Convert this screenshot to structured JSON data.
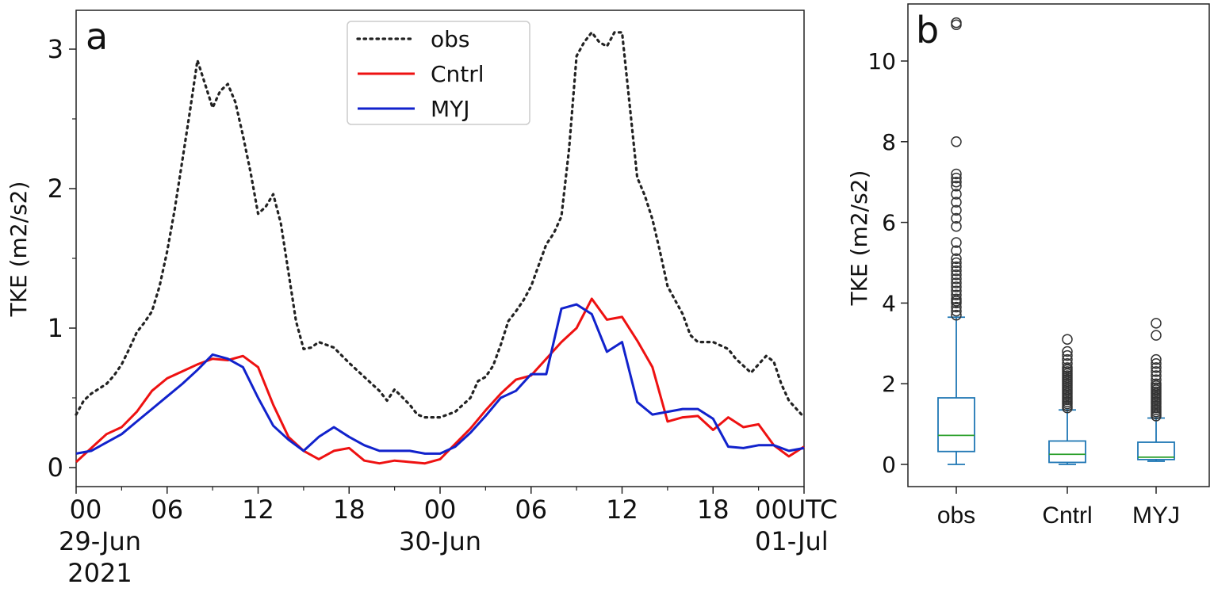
{
  "chart_data": [
    {
      "type": "line",
      "panel_label": "a",
      "ylabel": "TKE (m2/s2)",
      "ylim": [
        0,
        3.2
      ],
      "yticks": [
        0,
        1,
        2,
        3
      ],
      "xlim": [
        0,
        48
      ],
      "x_unit": "hours since 2021-06-29 00UTC",
      "xticks": [
        {
          "x": 0,
          "lines": [
            "00",
            "29-Jun",
            "2021"
          ]
        },
        {
          "x": 6,
          "lines": [
            "06"
          ]
        },
        {
          "x": 12,
          "lines": [
            "12"
          ]
        },
        {
          "x": 18,
          "lines": [
            "18"
          ]
        },
        {
          "x": 24,
          "lines": [
            "00",
            "30-Jun"
          ]
        },
        {
          "x": 30,
          "lines": [
            "06"
          ]
        },
        {
          "x": 36,
          "lines": [
            "12"
          ]
        },
        {
          "x": 42,
          "lines": [
            "18"
          ]
        },
        {
          "x": 48,
          "lines": [
            "00UTC",
            "01-Jul"
          ]
        }
      ],
      "legend_position": "top-center",
      "series": [
        {
          "name": "obs",
          "color": "#222222",
          "style": "dotted",
          "points": [
            [
              0,
              0.38
            ],
            [
              0.5,
              0.48
            ],
            [
              1,
              0.53
            ],
            [
              2,
              0.6
            ],
            [
              2.5,
              0.66
            ],
            [
              3,
              0.74
            ],
            [
              3.5,
              0.85
            ],
            [
              4,
              0.97
            ],
            [
              4.5,
              1.04
            ],
            [
              5,
              1.12
            ],
            [
              5.5,
              1.3
            ],
            [
              6,
              1.55
            ],
            [
              6.5,
              1.85
            ],
            [
              7,
              2.2
            ],
            [
              7.5,
              2.55
            ],
            [
              8,
              2.92
            ],
            [
              8.5,
              2.75
            ],
            [
              9,
              2.58
            ],
            [
              9.5,
              2.7
            ],
            [
              10,
              2.75
            ],
            [
              10.5,
              2.62
            ],
            [
              11,
              2.38
            ],
            [
              11.5,
              2.12
            ],
            [
              12,
              1.82
            ],
            [
              12.5,
              1.87
            ],
            [
              13,
              1.96
            ],
            [
              13.5,
              1.75
            ],
            [
              14,
              1.4
            ],
            [
              14.5,
              1.05
            ],
            [
              15,
              0.85
            ],
            [
              15.5,
              0.86
            ],
            [
              16,
              0.9
            ],
            [
              17,
              0.86
            ],
            [
              18,
              0.75
            ],
            [
              19,
              0.65
            ],
            [
              20,
              0.55
            ],
            [
              20.5,
              0.48
            ],
            [
              21,
              0.56
            ],
            [
              22,
              0.45
            ],
            [
              22.5,
              0.38
            ],
            [
              23,
              0.36
            ],
            [
              24,
              0.36
            ],
            [
              25,
              0.4
            ],
            [
              26,
              0.5
            ],
            [
              26.5,
              0.62
            ],
            [
              27,
              0.65
            ],
            [
              27.5,
              0.73
            ],
            [
              28,
              0.88
            ],
            [
              28.5,
              1.05
            ],
            [
              29,
              1.12
            ],
            [
              29.5,
              1.2
            ],
            [
              30,
              1.3
            ],
            [
              30.5,
              1.45
            ],
            [
              31,
              1.6
            ],
            [
              31.5,
              1.68
            ],
            [
              32,
              1.8
            ],
            [
              32.5,
              2.28
            ],
            [
              33,
              2.95
            ],
            [
              33.5,
              3.05
            ],
            [
              34,
              3.12
            ],
            [
              34.5,
              3.05
            ],
            [
              35,
              3.02
            ],
            [
              35.5,
              3.12
            ],
            [
              36,
              3.12
            ],
            [
              36.5,
              2.6
            ],
            [
              37,
              2.08
            ],
            [
              37.5,
              1.95
            ],
            [
              38,
              1.78
            ],
            [
              38.5,
              1.55
            ],
            [
              39,
              1.3
            ],
            [
              39.5,
              1.2
            ],
            [
              40,
              1.1
            ],
            [
              40.5,
              0.95
            ],
            [
              41,
              0.9
            ],
            [
              42,
              0.9
            ],
            [
              43,
              0.85
            ],
            [
              43.5,
              0.78
            ],
            [
              44,
              0.73
            ],
            [
              44.5,
              0.68
            ],
            [
              45,
              0.74
            ],
            [
              45.5,
              0.8
            ],
            [
              46,
              0.76
            ],
            [
              46.5,
              0.6
            ],
            [
              47,
              0.48
            ],
            [
              48,
              0.36
            ]
          ]
        },
        {
          "name": "Cntrl",
          "color": "#ee1111",
          "style": "solid",
          "points": [
            [
              0,
              0.04
            ],
            [
              1,
              0.14
            ],
            [
              2,
              0.24
            ],
            [
              3,
              0.29
            ],
            [
              4,
              0.4
            ],
            [
              5,
              0.55
            ],
            [
              6,
              0.64
            ],
            [
              7,
              0.69
            ],
            [
              8,
              0.74
            ],
            [
              9,
              0.78
            ],
            [
              10,
              0.77
            ],
            [
              11,
              0.8
            ],
            [
              12,
              0.72
            ],
            [
              13,
              0.45
            ],
            [
              14,
              0.22
            ],
            [
              15,
              0.12
            ],
            [
              16,
              0.06
            ],
            [
              17,
              0.12
            ],
            [
              18,
              0.14
            ],
            [
              19,
              0.05
            ],
            [
              20,
              0.03
            ],
            [
              21,
              0.05
            ],
            [
              22,
              0.04
            ],
            [
              23,
              0.03
            ],
            [
              24,
              0.06
            ],
            [
              25,
              0.17
            ],
            [
              26,
              0.28
            ],
            [
              27,
              0.41
            ],
            [
              28,
              0.53
            ],
            [
              29,
              0.63
            ],
            [
              30,
              0.66
            ],
            [
              31,
              0.78
            ],
            [
              32,
              0.9
            ],
            [
              33,
              1.0
            ],
            [
              34,
              1.21
            ],
            [
              35,
              1.06
            ],
            [
              36,
              1.08
            ],
            [
              37,
              0.91
            ],
            [
              38,
              0.72
            ],
            [
              39,
              0.33
            ],
            [
              40,
              0.36
            ],
            [
              41,
              0.37
            ],
            [
              42,
              0.27
            ],
            [
              43,
              0.36
            ],
            [
              44,
              0.29
            ],
            [
              45,
              0.31
            ],
            [
              46,
              0.16
            ],
            [
              47,
              0.08
            ],
            [
              48,
              0.15
            ]
          ]
        },
        {
          "name": "MYJ",
          "color": "#1122cc",
          "style": "solid",
          "points": [
            [
              0,
              0.1
            ],
            [
              1,
              0.12
            ],
            [
              2,
              0.18
            ],
            [
              3,
              0.24
            ],
            [
              4,
              0.33
            ],
            [
              5,
              0.42
            ],
            [
              6,
              0.51
            ],
            [
              7,
              0.6
            ],
            [
              8,
              0.7
            ],
            [
              9,
              0.81
            ],
            [
              10,
              0.78
            ],
            [
              11,
              0.72
            ],
            [
              12,
              0.5
            ],
            [
              13,
              0.3
            ],
            [
              14,
              0.2
            ],
            [
              15,
              0.12
            ],
            [
              16,
              0.22
            ],
            [
              17,
              0.29
            ],
            [
              18,
              0.22
            ],
            [
              19,
              0.16
            ],
            [
              20,
              0.12
            ],
            [
              21,
              0.12
            ],
            [
              22,
              0.12
            ],
            [
              23,
              0.1
            ],
            [
              24,
              0.1
            ],
            [
              25,
              0.15
            ],
            [
              26,
              0.25
            ],
            [
              27,
              0.37
            ],
            [
              28,
              0.5
            ],
            [
              29,
              0.55
            ],
            [
              30,
              0.67
            ],
            [
              31,
              0.67
            ],
            [
              32,
              1.14
            ],
            [
              33,
              1.17
            ],
            [
              34,
              1.1
            ],
            [
              35,
              0.83
            ],
            [
              36,
              0.9
            ],
            [
              37,
              0.47
            ],
            [
              38,
              0.38
            ],
            [
              39,
              0.4
            ],
            [
              40,
              0.42
            ],
            [
              41,
              0.42
            ],
            [
              42,
              0.35
            ],
            [
              43,
              0.15
            ],
            [
              44,
              0.14
            ],
            [
              45,
              0.16
            ],
            [
              46,
              0.16
            ],
            [
              47,
              0.12
            ],
            [
              48,
              0.14
            ]
          ]
        }
      ]
    },
    {
      "type": "box",
      "panel_label": "b",
      "ylabel": "TKE (m2/s2)",
      "ylim": [
        -0.5,
        11.5
      ],
      "yticks": [
        0,
        2,
        4,
        6,
        8,
        10
      ],
      "categories": [
        "obs",
        "Cntrl",
        "MYJ"
      ],
      "box_color": "#1f77b4",
      "median_color": "#2ca02c",
      "boxes": [
        {
          "label": "obs",
          "whisker_low": 0.0,
          "q1": 0.32,
          "median": 0.72,
          "q3": 1.65,
          "whisker_high": 3.65,
          "outliers": [
            3.7,
            3.8,
            3.9,
            4.0,
            4.05,
            4.1,
            4.2,
            4.3,
            4.4,
            4.5,
            4.6,
            4.7,
            4.8,
            4.9,
            5.0,
            5.1,
            5.3,
            5.5,
            5.9,
            6.1,
            6.3,
            6.5,
            6.7,
            6.9,
            7.0,
            7.1,
            7.2,
            8.0,
            10.9,
            10.95
          ]
        },
        {
          "label": "Cntrl",
          "whisker_low": 0.0,
          "q1": 0.05,
          "median": 0.25,
          "q3": 0.58,
          "whisker_high": 1.35,
          "outliers": [
            1.4,
            1.45,
            1.5,
            1.55,
            1.6,
            1.65,
            1.7,
            1.75,
            1.8,
            1.85,
            1.9,
            1.95,
            2.0,
            2.05,
            2.1,
            2.15,
            2.2,
            2.25,
            2.3,
            2.35,
            2.4,
            2.5,
            2.6,
            2.7,
            2.8,
            3.1
          ]
        },
        {
          "label": "MYJ",
          "whisker_low": 0.08,
          "q1": 0.12,
          "median": 0.18,
          "q3": 0.55,
          "whisker_high": 1.15,
          "outliers": [
            1.2,
            1.25,
            1.3,
            1.35,
            1.4,
            1.45,
            1.5,
            1.55,
            1.6,
            1.65,
            1.7,
            1.75,
            1.8,
            1.85,
            1.9,
            1.95,
            2.0,
            2.1,
            2.2,
            2.3,
            2.4,
            2.5,
            2.6,
            3.2,
            3.5
          ]
        }
      ]
    }
  ]
}
